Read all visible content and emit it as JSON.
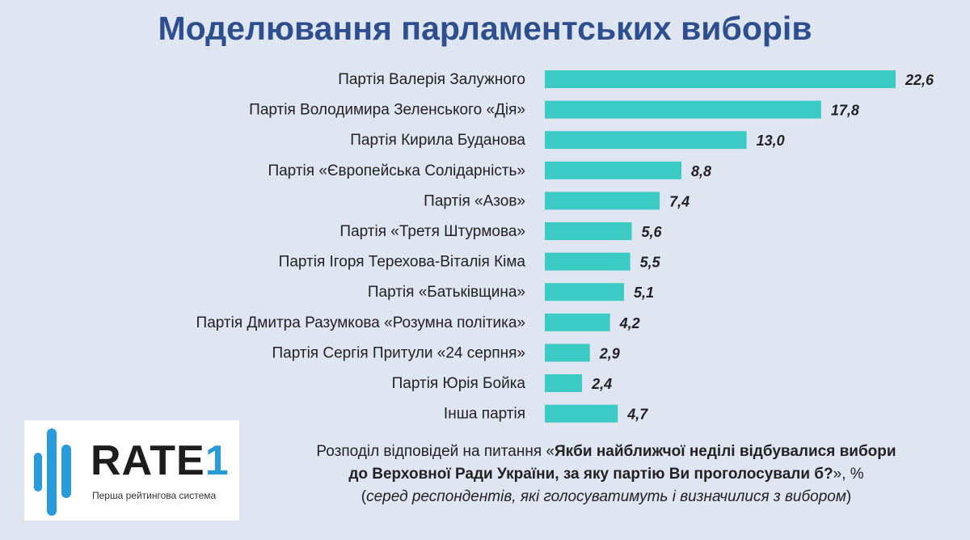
{
  "chart_data": {
    "type": "bar",
    "orientation": "horizontal",
    "title": "Моделювання парламентських виборів",
    "categories": [
      "Партія Валерія Залужного",
      "Партія Володимира Зеленського «Дія»",
      "Партія Кирила Буданова",
      "Партія «Європейська Солідарність»",
      "Партія «Азов»",
      "Партія «Третя Штурмова»",
      "Партія Ігоря Терехова-Віталія Кіма",
      "Партія «Батьківщина»",
      "Партія Дмитра Разумкова «Розумна політика»",
      "Партія Сергія Притули «24 серпня»",
      "Партія Юрія Бойка",
      "Інша партія"
    ],
    "values": [
      22.6,
      17.8,
      13.0,
      8.8,
      7.4,
      5.6,
      5.5,
      5.1,
      4.2,
      2.9,
      2.4,
      4.7
    ],
    "value_labels": [
      "22,6",
      "17,8",
      "13,0",
      "8,8",
      "7,4",
      "5,6",
      "5,5",
      "5,1",
      "4,2",
      "2,9",
      "2,4",
      "4,7"
    ],
    "bar_color": "#3ccac4",
    "grid": false,
    "legend": "none"
  },
  "logo": {
    "name": "RATE",
    "digit": "1",
    "tagline": "Перша рейтингова система",
    "accent": "#2a9ad8"
  },
  "caption": {
    "line1_regular": "Розподіл відповідей на питання «",
    "line1_bold": "Якби найближчої неділі відбувалися вибори",
    "line2_bold": "до Верховної Ради України, за яку партію Ви проголосували б?",
    "line2_regular": "», %",
    "line3_italic_open": "(",
    "line3_italic": "серед респондентів, які голосуватимуть і визначилися з вибором",
    "line3_close": ")"
  }
}
